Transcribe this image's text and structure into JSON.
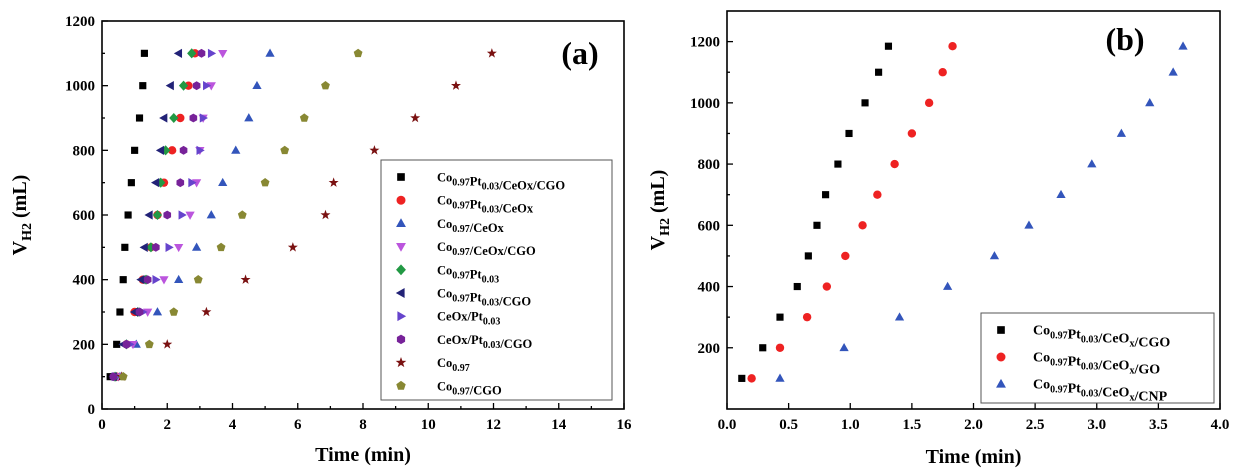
{
  "chart_data": [
    {
      "type": "scatter",
      "panel_label": "(a)",
      "xlabel": "Time (min)",
      "ylabel": {
        "base": "V",
        "sub": "H2",
        "unit": " (mL)"
      },
      "xlim": [
        0,
        16
      ],
      "ylim": [
        0,
        1200
      ],
      "xticks": [
        0,
        2,
        4,
        6,
        8,
        10,
        12,
        14,
        16
      ],
      "yticks": [
        0,
        200,
        400,
        600,
        800,
        1000,
        1200
      ],
      "legend_position": "center-right",
      "series": [
        {
          "name": [
            [
              "Co",
              ""
            ],
            [
              "0.97",
              "sub"
            ],
            [
              "Pt",
              ""
            ],
            [
              "0.03",
              "sub"
            ],
            [
              "/CeOx/CGO",
              ""
            ]
          ],
          "marker": "square",
          "color": "#000000",
          "x": [
            0.25,
            0.45,
            0.55,
            0.65,
            0.7,
            0.8,
            0.9,
            1.0,
            1.15,
            1.25,
            1.3
          ],
          "y": [
            100,
            200,
            300,
            400,
            500,
            600,
            700,
            800,
            900,
            1000,
            1100
          ]
        },
        {
          "name": [
            [
              "Co",
              ""
            ],
            [
              "0.97",
              "sub"
            ],
            [
              "Pt",
              ""
            ],
            [
              "0.03",
              "sub"
            ],
            [
              "/CeOx",
              ""
            ]
          ],
          "marker": "circle",
          "color": "#ee2222",
          "x": [
            0.45,
            0.75,
            1.0,
            1.25,
            1.5,
            1.7,
            1.9,
            2.15,
            2.4,
            2.65,
            2.85
          ],
          "y": [
            100,
            200,
            300,
            400,
            500,
            600,
            700,
            800,
            900,
            1000,
            1100
          ]
        },
        {
          "name": [
            [
              "Co",
              ""
            ],
            [
              "0.97",
              "sub"
            ],
            [
              "/CeOx",
              ""
            ]
          ],
          "marker": "triangle-up",
          "color": "#3355bb",
          "x": [
            0.55,
            1.05,
            1.7,
            2.35,
            2.9,
            3.35,
            3.7,
            4.1,
            4.5,
            4.75,
            5.15
          ],
          "y": [
            100,
            200,
            300,
            400,
            500,
            600,
            700,
            800,
            900,
            1000,
            1100
          ]
        },
        {
          "name": [
            [
              "Co",
              ""
            ],
            [
              "0.97",
              "sub"
            ],
            [
              "/CeOx/CGO",
              ""
            ]
          ],
          "marker": "triangle-down",
          "color": "#bb55dd",
          "x": [
            0.5,
            0.95,
            1.4,
            1.9,
            2.35,
            2.7,
            2.9,
            3.0,
            3.1,
            3.35,
            3.7
          ],
          "y": [
            100,
            200,
            300,
            400,
            500,
            600,
            700,
            800,
            900,
            1000,
            1100
          ]
        },
        {
          "name": [
            [
              "Co",
              ""
            ],
            [
              "0.97",
              "sub"
            ],
            [
              "Pt",
              ""
            ],
            [
              "0.03",
              "sub"
            ],
            [
              "",
              ""
            ]
          ],
          "marker": "diamond",
          "color": "#229944",
          "x": [
            0.4,
            0.75,
            1.1,
            1.35,
            1.5,
            1.7,
            1.8,
            1.95,
            2.2,
            2.5,
            2.75
          ],
          "y": [
            100,
            200,
            300,
            400,
            500,
            600,
            700,
            800,
            900,
            1000,
            1100
          ]
        },
        {
          "name": [
            [
              "Co",
              ""
            ],
            [
              "0.97",
              "sub"
            ],
            [
              "Pt",
              ""
            ],
            [
              "0.03",
              "sub"
            ],
            [
              "/CGO",
              ""
            ]
          ],
          "marker": "triangle-left",
          "color": "#222277",
          "x": [
            0.35,
            0.65,
            1.0,
            1.2,
            1.3,
            1.45,
            1.65,
            1.8,
            1.9,
            2.1,
            2.35
          ],
          "y": [
            100,
            200,
            300,
            400,
            500,
            600,
            700,
            800,
            900,
            1000,
            1100
          ]
        },
        {
          "name": [
            [
              "CeOx/Pt",
              ""
            ],
            [
              "0.03",
              "sub"
            ],
            [
              "",
              ""
            ]
          ],
          "marker": "triangle-right",
          "color": "#6644cc",
          "x": [
            0.4,
            0.85,
            1.25,
            1.65,
            2.05,
            2.45,
            2.75,
            3.0,
            3.1,
            3.2,
            3.35
          ],
          "y": [
            100,
            200,
            300,
            400,
            500,
            600,
            700,
            800,
            900,
            1000,
            1100
          ]
        },
        {
          "name": [
            [
              "CeOx/Pt",
              ""
            ],
            [
              "0.03",
              "sub"
            ],
            [
              "/CGO",
              ""
            ]
          ],
          "marker": "hexagon",
          "color": "#772299",
          "x": [
            0.35,
            0.75,
            1.15,
            1.4,
            1.65,
            2.0,
            2.4,
            2.5,
            2.8,
            2.9,
            3.05
          ],
          "y": [
            100,
            200,
            300,
            400,
            500,
            600,
            700,
            800,
            900,
            1000,
            1100
          ]
        },
        {
          "name": [
            [
              "Co",
              ""
            ],
            [
              "0.97",
              "sub"
            ],
            [
              "",
              ""
            ]
          ],
          "marker": "star",
          "color": "#7a1111",
          "x": [
            0.6,
            2.0,
            3.2,
            4.4,
            5.85,
            6.85,
            7.1,
            8.35,
            9.6,
            10.85,
            11.95
          ],
          "y": [
            100,
            200,
            300,
            400,
            500,
            600,
            700,
            800,
            900,
            1000,
            1100
          ]
        },
        {
          "name": [
            [
              "Co",
              ""
            ],
            [
              "0.97",
              "sub"
            ],
            [
              "/CGO",
              ""
            ]
          ],
          "marker": "pentagon",
          "color": "#888833",
          "x": [
            0.65,
            1.45,
            2.2,
            2.95,
            3.65,
            4.3,
            5.0,
            5.6,
            6.2,
            6.85,
            7.85
          ],
          "y": [
            100,
            200,
            300,
            400,
            500,
            600,
            700,
            800,
            900,
            1000,
            1100
          ]
        }
      ]
    },
    {
      "type": "scatter",
      "panel_label": "(b)",
      "xlabel": "Time (min)",
      "ylabel": {
        "base": "V",
        "sub": "H2",
        "unit": " (mL)"
      },
      "xlim": [
        0,
        4
      ],
      "ylim": [
        0,
        1300
      ],
      "xticks": [
        0.0,
        0.5,
        1.0,
        1.5,
        2.0,
        2.5,
        3.0,
        3.5,
        4.0
      ],
      "xtick_labels": [
        "0.0",
        "0.5",
        "1.0",
        "1.5",
        "2.0",
        "2.5",
        "3.0",
        "3.5",
        "4.0"
      ],
      "yticks": [
        200,
        400,
        600,
        800,
        1000,
        1200
      ],
      "legend_position": "bottom-right",
      "series": [
        {
          "name": [
            [
              "Co",
              ""
            ],
            [
              "0.97",
              "sub"
            ],
            [
              "Pt",
              ""
            ],
            [
              "0.03",
              "sub"
            ],
            [
              "/CeO",
              ""
            ],
            [
              "x",
              "sub"
            ],
            [
              "/CGO",
              ""
            ]
          ],
          "marker": "square",
          "color": "#000000",
          "x": [
            0.12,
            0.29,
            0.43,
            0.57,
            0.66,
            0.73,
            0.8,
            0.9,
            0.99,
            1.12,
            1.23,
            1.31
          ],
          "y": [
            100,
            200,
            300,
            400,
            500,
            600,
            700,
            800,
            900,
            1000,
            1100,
            1185
          ]
        },
        {
          "name": [
            [
              "Co",
              ""
            ],
            [
              "0.97",
              "sub"
            ],
            [
              "Pt",
              ""
            ],
            [
              "0.03",
              "sub"
            ],
            [
              "/CeO",
              ""
            ],
            [
              "x",
              "sub"
            ],
            [
              "/GO",
              ""
            ]
          ],
          "marker": "circle",
          "color": "#ee2222",
          "x": [
            0.2,
            0.43,
            0.65,
            0.81,
            0.96,
            1.1,
            1.22,
            1.36,
            1.5,
            1.64,
            1.75,
            1.83
          ],
          "y": [
            100,
            200,
            300,
            400,
            500,
            600,
            700,
            800,
            900,
            1000,
            1100,
            1185
          ]
        },
        {
          "name": [
            [
              "Co",
              ""
            ],
            [
              "0.97",
              "sub"
            ],
            [
              "Pt",
              ""
            ],
            [
              "0.03",
              "sub"
            ],
            [
              "/CeO",
              ""
            ],
            [
              "x",
              "sub"
            ],
            [
              "/CNP",
              ""
            ]
          ],
          "marker": "triangle-up",
          "color": "#3355bb",
          "x": [
            0.43,
            0.95,
            1.4,
            1.79,
            2.17,
            2.45,
            2.71,
            2.96,
            3.2,
            3.43,
            3.62,
            3.7
          ],
          "y": [
            100,
            200,
            300,
            400,
            500,
            600,
            700,
            800,
            900,
            1000,
            1100,
            1185
          ]
        }
      ]
    }
  ]
}
